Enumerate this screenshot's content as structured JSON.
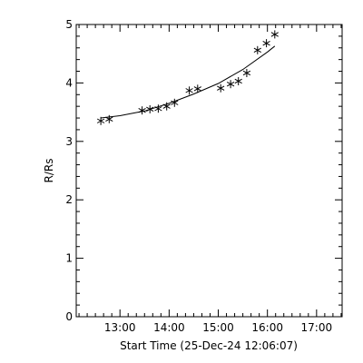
{
  "chart_data": {
    "type": "scatter",
    "xlabel": "Start Time (25-Dec-24 12:06:07)",
    "ylabel": "R/Rs",
    "x_tick_labels": [
      "13:00",
      "14:00",
      "15:00",
      "16:00",
      "17:00"
    ],
    "x_tick_hours": [
      13,
      14,
      15,
      16,
      17
    ],
    "xlim_hours": [
      12.11,
      17.52
    ],
    "ylim": [
      0,
      5
    ],
    "y_ticks": [
      0,
      1,
      2,
      3,
      4,
      5
    ],
    "y_tick_labels": [
      "0",
      "1",
      "2",
      "3",
      "4",
      "5"
    ],
    "grid": false,
    "marker": "asterisk",
    "series": [
      {
        "kind": "points",
        "x_hours": [
          12.61,
          12.78,
          13.45,
          13.61,
          13.78,
          13.95,
          14.11,
          14.41,
          14.58,
          15.05,
          15.25,
          15.41,
          15.58,
          15.8,
          15.98,
          16.15
        ],
        "y": [
          3.35,
          3.38,
          3.53,
          3.55,
          3.56,
          3.6,
          3.66,
          3.87,
          3.9,
          3.91,
          3.98,
          4.03,
          4.17,
          4.56,
          4.68,
          4.83
        ]
      },
      {
        "kind": "fit",
        "x_hours": [
          12.61,
          13.0,
          13.5,
          14.0,
          14.5,
          15.0,
          15.5,
          16.0,
          16.15
        ],
        "y": [
          3.4,
          3.44,
          3.52,
          3.65,
          3.81,
          3.99,
          4.23,
          4.53,
          4.63
        ]
      }
    ]
  }
}
